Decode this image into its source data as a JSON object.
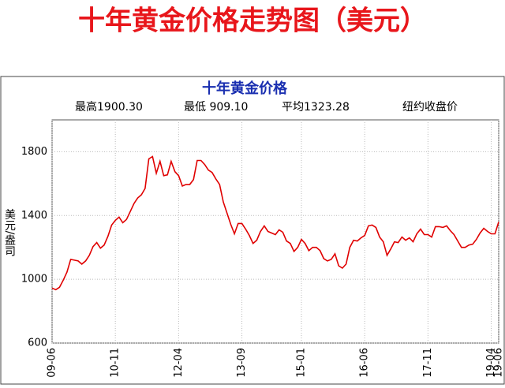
{
  "page_title": "十年黄金价格走势图（美元）",
  "chart_data": {
    "type": "line",
    "title": "十年黄金价格",
    "annotations": [
      "最高1900.30",
      "最低 909.10",
      "平均1323.28",
      "纽约收盘价"
    ],
    "ylabel": "美元/盎司",
    "categories": [
      "09-06",
      null,
      null,
      null,
      null,
      null,
      null,
      null,
      null,
      null,
      null,
      null,
      null,
      null,
      null,
      null,
      null,
      "10-11",
      null,
      null,
      null,
      null,
      null,
      null,
      null,
      null,
      null,
      null,
      null,
      null,
      null,
      null,
      null,
      null,
      "12-04",
      null,
      null,
      null,
      null,
      null,
      null,
      null,
      null,
      null,
      null,
      null,
      null,
      null,
      null,
      null,
      null,
      "13-09",
      null,
      null,
      null,
      null,
      null,
      null,
      null,
      null,
      null,
      null,
      null,
      null,
      null,
      null,
      null,
      "15-01",
      null,
      null,
      null,
      null,
      null,
      null,
      null,
      null,
      null,
      null,
      null,
      null,
      null,
      null,
      null,
      null,
      "16-06",
      null,
      null,
      null,
      null,
      null,
      null,
      null,
      null,
      null,
      null,
      null,
      null,
      null,
      null,
      null,
      null,
      "17-11",
      null,
      null,
      null,
      null,
      null,
      null,
      null,
      null,
      null,
      null,
      null,
      null,
      null,
      null,
      null,
      null,
      "19-04",
      null,
      "19-06"
    ],
    "series": [
      {
        "name": null,
        "color": "#e00000",
        "values": [
          945,
          935,
          950,
          995,
          1045,
          1125,
          1120,
          1115,
          1095,
          1115,
          1150,
          1205,
          1230,
          1195,
          1215,
          1270,
          1340,
          1370,
          1390,
          1355,
          1375,
          1425,
          1475,
          1510,
          1530,
          1570,
          1755,
          1770,
          1665,
          1740,
          1650,
          1655,
          1740,
          1675,
          1650,
          1585,
          1595,
          1595,
          1625,
          1745,
          1745,
          1720,
          1685,
          1670,
          1630,
          1595,
          1485,
          1415,
          1345,
          1285,
          1350,
          1350,
          1315,
          1275,
          1225,
          1245,
          1300,
          1335,
          1300,
          1290,
          1280,
          1310,
          1295,
          1240,
          1225,
          1175,
          1200,
          1250,
          1225,
          1180,
          1200,
          1200,
          1180,
          1130,
          1115,
          1125,
          1160,
          1085,
          1070,
          1095,
          1200,
          1245,
          1240,
          1260,
          1275,
          1335,
          1340,
          1325,
          1265,
          1235,
          1150,
          1190,
          1235,
          1230,
          1265,
          1245,
          1260,
          1235,
          1285,
          1315,
          1280,
          1280,
          1265,
          1330,
          1330,
          1325,
          1335,
          1305,
          1280,
          1240,
          1200,
          1200,
          1215,
          1220,
          1250,
          1290,
          1320,
          1300,
          1285,
          1285,
          1360
        ]
      }
    ],
    "ylim": [
      600,
      2000
    ],
    "yticks": [
      600,
      1000,
      1400,
      1800
    ],
    "grid": true
  }
}
